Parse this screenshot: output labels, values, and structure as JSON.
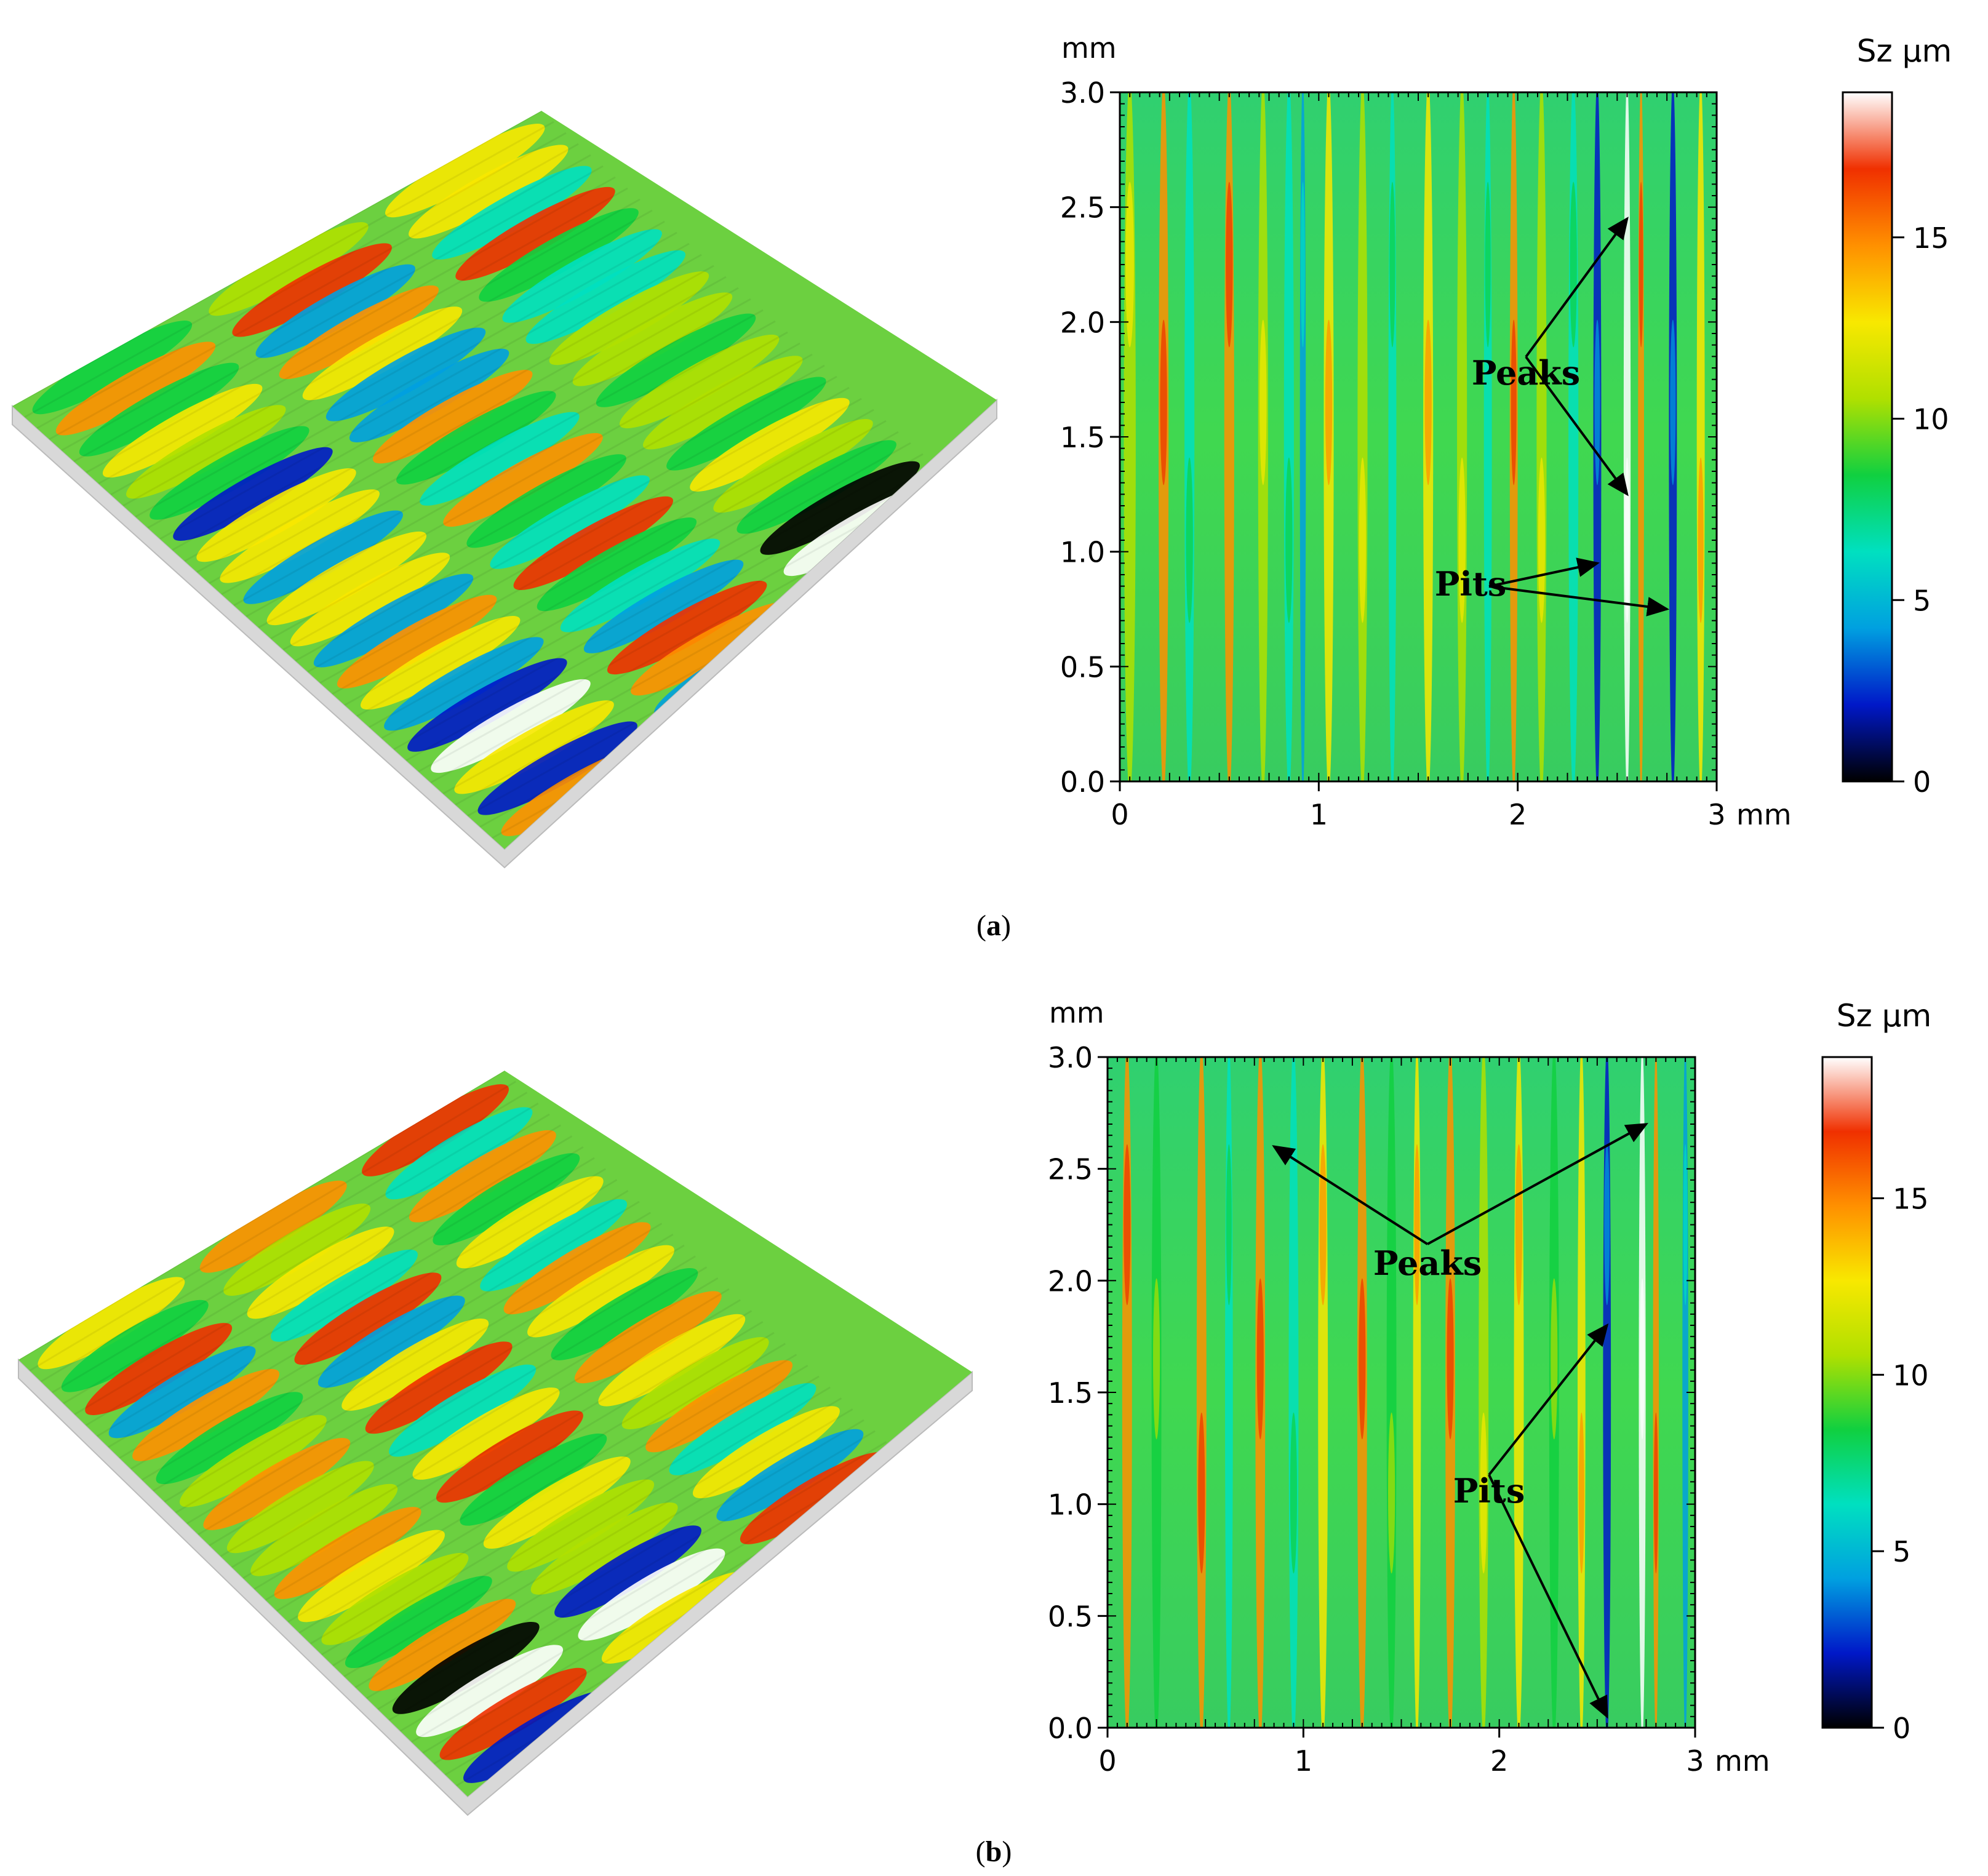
{
  "figure": {
    "panels": [
      {
        "label": "a",
        "chart_data": {
          "type": "heatmap",
          "x_axis_unit": "mm",
          "y_axis_unit": "mm",
          "xlim": [
            0,
            3
          ],
          "ylim": [
            0,
            3
          ],
          "x_ticks": [
            0,
            1,
            2,
            3
          ],
          "y_ticks": [
            "0.0",
            "0.5",
            "1.0",
            "1.5",
            "2.0",
            "2.5",
            "3.0"
          ],
          "colorbar": {
            "label": "Sz",
            "unit": "µm",
            "range": [
              0,
              19
            ],
            "ticks": [
              0,
              5,
              10,
              15
            ]
          },
          "annotations": [
            {
              "text": "Peaks",
              "targets": [
                [
                  2.55,
                  2.45
                ],
                [
                  2.55,
                  1.25
                ]
              ]
            },
            {
              "text": "Pits",
              "targets": [
                [
                  2.4,
                  0.95
                ],
                [
                  2.75,
                  0.75
                ]
              ]
            }
          ],
          "stripes": [
            {
              "x": 0.05,
              "val": 10,
              "w": 0.06
            },
            {
              "x": 0.22,
              "val": 14,
              "w": 0.05
            },
            {
              "x": 0.35,
              "val": 6,
              "w": 0.05
            },
            {
              "x": 0.55,
              "val": 14,
              "w": 0.05
            },
            {
              "x": 0.72,
              "val": 11,
              "w": 0.05
            },
            {
              "x": 0.85,
              "val": 7,
              "w": 0.05
            },
            {
              "x": 0.92,
              "val": 4,
              "w": 0.03
            },
            {
              "x": 1.05,
              "val": 13,
              "w": 0.05
            },
            {
              "x": 1.22,
              "val": 11,
              "w": 0.05
            },
            {
              "x": 1.37,
              "val": 6,
              "w": 0.04
            },
            {
              "x": 1.55,
              "val": 12,
              "w": 0.05
            },
            {
              "x": 1.72,
              "val": 10,
              "w": 0.05
            },
            {
              "x": 1.85,
              "val": 6,
              "w": 0.04
            },
            {
              "x": 1.98,
              "val": 14,
              "w": 0.04
            },
            {
              "x": 2.12,
              "val": 11,
              "w": 0.05
            },
            {
              "x": 2.28,
              "val": 7,
              "w": 0.05
            },
            {
              "x": 2.4,
              "val": 1.5,
              "w": 0.04
            },
            {
              "x": 2.55,
              "val": 19,
              "w": 0.035
            },
            {
              "x": 2.62,
              "val": 14,
              "w": 0.03
            },
            {
              "x": 2.78,
              "val": 2,
              "w": 0.04
            },
            {
              "x": 2.92,
              "val": 12,
              "w": 0.04
            }
          ]
        }
      },
      {
        "label": "b",
        "chart_data": {
          "type": "heatmap",
          "x_axis_unit": "mm",
          "y_axis_unit": "mm",
          "xlim": [
            0,
            3
          ],
          "ylim": [
            0,
            3
          ],
          "x_ticks": [
            0,
            1,
            2,
            3
          ],
          "y_ticks": [
            "0.0",
            "0.5",
            "1.0",
            "1.5",
            "2.0",
            "2.5",
            "3.0"
          ],
          "colorbar": {
            "label": "Sz",
            "unit": "µm",
            "range": [
              0,
              19
            ],
            "ticks": [
              0,
              5,
              10,
              15
            ]
          },
          "annotations": [
            {
              "text": "Peaks",
              "targets": [
                [
                  0.85,
                  2.6
                ],
                [
                  2.75,
                  2.7
                ]
              ]
            },
            {
              "text": "Pits",
              "targets": [
                [
                  2.55,
                  1.8
                ],
                [
                  2.55,
                  0.05
                ]
              ]
            }
          ],
          "stripes": [
            {
              "x": 0.1,
              "val": 14,
              "w": 0.05
            },
            {
              "x": 0.25,
              "val": 8,
              "w": 0.05
            },
            {
              "x": 0.48,
              "val": 14,
              "w": 0.05
            },
            {
              "x": 0.62,
              "val": 6,
              "w": 0.04
            },
            {
              "x": 0.78,
              "val": 14,
              "w": 0.05
            },
            {
              "x": 0.95,
              "val": 7,
              "w": 0.05
            },
            {
              "x": 1.1,
              "val": 12,
              "w": 0.05
            },
            {
              "x": 1.3,
              "val": 14,
              "w": 0.05
            },
            {
              "x": 1.45,
              "val": 8,
              "w": 0.05
            },
            {
              "x": 1.58,
              "val": 13,
              "w": 0.04
            },
            {
              "x": 1.75,
              "val": 14,
              "w": 0.05
            },
            {
              "x": 1.92,
              "val": 10,
              "w": 0.05
            },
            {
              "x": 2.1,
              "val": 13,
              "w": 0.05
            },
            {
              "x": 2.28,
              "val": 8,
              "w": 0.05
            },
            {
              "x": 2.42,
              "val": 12,
              "w": 0.04
            },
            {
              "x": 2.55,
              "val": 3,
              "w": 0.04
            },
            {
              "x": 2.73,
              "val": 18,
              "w": 0.035
            },
            {
              "x": 2.8,
              "val": 14,
              "w": 0.03
            },
            {
              "x": 2.95,
              "val": 5,
              "w": 0.03
            }
          ]
        }
      }
    ]
  },
  "colors": {
    "colormap": [
      "#000000",
      "#0018c8",
      "#00a0e0",
      "#00e0c0",
      "#10d040",
      "#b0e000",
      "#f8e800",
      "#ff9000",
      "#f03000",
      "#ffffff"
    ],
    "arrow": "#000000"
  }
}
